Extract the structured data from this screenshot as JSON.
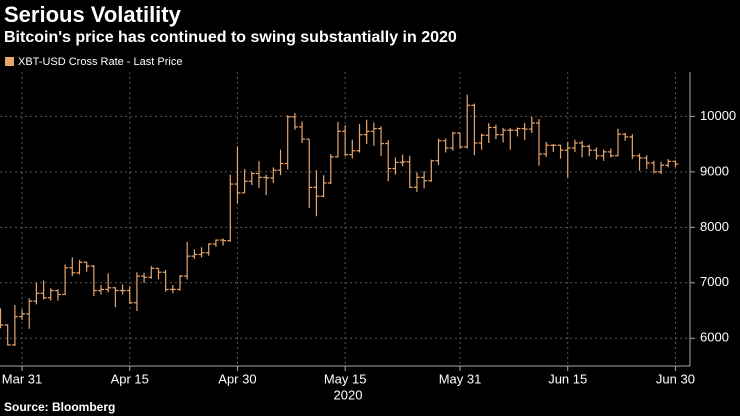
{
  "chart_data": {
    "type": "ohlc",
    "title": "Serious Volatility",
    "subtitle": "Bitcoin's price has continued to swing substantially in 2020",
    "source": "Source: Bloomberg",
    "xlabel": "2020",
    "categories": [
      null,
      null,
      null,
      "Mar 31",
      null,
      null,
      null,
      null,
      null,
      null,
      null,
      null,
      null,
      null,
      null,
      null,
      null,
      null,
      "Apr 15",
      null,
      null,
      null,
      null,
      null,
      null,
      null,
      null,
      null,
      null,
      null,
      null,
      null,
      null,
      "Apr 30",
      null,
      null,
      null,
      null,
      null,
      null,
      null,
      null,
      null,
      null,
      null,
      null,
      null,
      null,
      "May 15",
      null,
      null,
      null,
      null,
      null,
      null,
      null,
      null,
      null,
      null,
      null,
      null,
      null,
      null,
      null,
      "May 31",
      null,
      null,
      null,
      null,
      null,
      null,
      null,
      null,
      null,
      null,
      null,
      null,
      null,
      null,
      "Jun 15",
      null,
      null,
      null,
      null,
      null,
      null,
      null,
      null,
      null,
      null,
      null,
      null,
      null,
      null,
      "Jun 30"
    ],
    "series": [
      {
        "name": "XBT-USD Cross Rate - Last Price",
        "color": "#e9a56b",
        "open": [
          6460,
          6240,
          5880,
          6390,
          6440,
          6670,
          6810,
          6730,
          6860,
          6790,
          7270,
          7180,
          7370,
          7300,
          6860,
          6880,
          6910,
          6860,
          6860,
          6640,
          7120,
          7100,
          7260,
          7190,
          6880,
          6880,
          7120,
          7480,
          7510,
          7540,
          7700,
          7770,
          7760,
          8780,
          8620,
          8830,
          8970,
          8900,
          8890,
          9030,
          9150,
          9990,
          9810,
          9590,
          8720,
          8560,
          8800,
          9270,
          9730,
          9310,
          9380,
          9670,
          9730,
          9780,
          9510,
          9060,
          9170,
          9180,
          8720,
          8900,
          8840,
          9200,
          9560,
          9430,
          9700,
          9450,
          10200,
          9520,
          9660,
          9800,
          9670,
          9750,
          9750,
          9780,
          9770,
          9880,
          9320,
          9480,
          9480,
          9390,
          9430,
          9520,
          9460,
          9390,
          9290,
          9360,
          9290,
          9680,
          9630,
          9290,
          9250,
          9160,
          9000,
          9120,
          9190
        ],
        "high": [
          6540,
          6250,
          6600,
          6520,
          6720,
          7000,
          7040,
          6900,
          6880,
          7330,
          7460,
          7410,
          7380,
          7320,
          6960,
          7170,
          6920,
          6970,
          6940,
          7190,
          7180,
          7300,
          7260,
          7230,
          6960,
          7140,
          7740,
          7600,
          7640,
          7710,
          7780,
          7800,
          8950,
          9460,
          9050,
          9000,
          9190,
          8950,
          9080,
          9400,
          10020,
          10060,
          9910,
          9590,
          9030,
          8940,
          9320,
          9900,
          9840,
          9580,
          9860,
          9940,
          9890,
          9820,
          9570,
          9260,
          9310,
          9290,
          8990,
          9010,
          9220,
          9600,
          9600,
          9720,
          9700,
          10390,
          10230,
          9690,
          9880,
          9850,
          9790,
          9790,
          9800,
          9880,
          9990,
          9950,
          9540,
          9500,
          9490,
          9540,
          9580,
          9560,
          9490,
          9440,
          9400,
          9420,
          9780,
          9700,
          9680,
          9330,
          9300,
          9200,
          9180,
          9230,
          9200
        ],
        "low": [
          6180,
          5870,
          5860,
          6330,
          6170,
          6610,
          6700,
          6680,
          6680,
          6780,
          7120,
          7150,
          7200,
          6760,
          6790,
          6830,
          6560,
          6790,
          6620,
          6490,
          7000,
          7070,
          7060,
          6840,
          6810,
          6860,
          7060,
          7430,
          7460,
          7490,
          7650,
          7670,
          7740,
          8430,
          8620,
          8760,
          8710,
          8580,
          8800,
          8940,
          9040,
          9760,
          9520,
          8350,
          8200,
          8540,
          8780,
          9260,
          9280,
          9240,
          9350,
          9500,
          9470,
          9290,
          8830,
          8950,
          9100,
          8710,
          8640,
          8700,
          8820,
          9120,
          9350,
          9380,
          9420,
          9420,
          9300,
          9400,
          9520,
          9590,
          9530,
          9400,
          9640,
          9570,
          9700,
          9110,
          9270,
          9360,
          9240,
          8900,
          9360,
          9260,
          9280,
          9220,
          9200,
          9260,
          9280,
          9560,
          9230,
          9020,
          9050,
          8970,
          8960,
          9080,
          9090
        ],
        "close": [
          6240,
          5880,
          6390,
          6440,
          6670,
          6810,
          6730,
          6860,
          6790,
          7270,
          7180,
          7370,
          7300,
          6860,
          6880,
          6910,
          6860,
          6860,
          6640,
          7120,
          7100,
          7260,
          7190,
          6880,
          6880,
          7120,
          7480,
          7510,
          7540,
          7700,
          7770,
          7760,
          8780,
          8620,
          8830,
          8970,
          8900,
          8890,
          9030,
          9150,
          9990,
          9810,
          9590,
          8720,
          8560,
          8800,
          9270,
          9730,
          9310,
          9380,
          9670,
          9730,
          9780,
          9510,
          9060,
          9170,
          9180,
          8720,
          8900,
          8840,
          9200,
          9560,
          9430,
          9700,
          9450,
          10200,
          9520,
          9660,
          9800,
          9670,
          9750,
          9750,
          9780,
          9770,
          9880,
          9320,
          9480,
          9480,
          9390,
          9430,
          9520,
          9460,
          9390,
          9290,
          9360,
          9290,
          9680,
          9630,
          9290,
          9250,
          9160,
          9000,
          9120,
          9190,
          9140
        ]
      }
    ],
    "ylim": [
      5500,
      10800
    ],
    "yticks": [
      6000,
      7000,
      8000,
      9000,
      10000
    ],
    "grid": true
  }
}
